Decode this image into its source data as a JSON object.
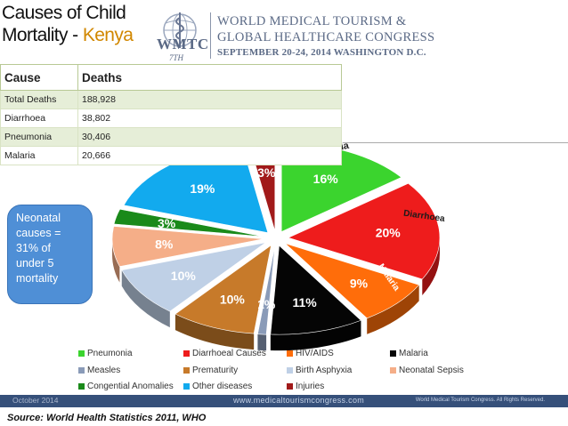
{
  "header": {
    "title_line1": "Causes of Child",
    "title_line2_prefix": "Mortality - ",
    "title_country": "Kenya"
  },
  "logo": {
    "wmtc": "WMTC",
    "edition": "7TH",
    "line1": "WORLD MEDICAL TOURISM &",
    "line2": "GLOBAL HEALTHCARE CONGRESS",
    "line3": "SEPTEMBER 20-24, 2014 WASHINGTON D.C."
  },
  "table": {
    "headers": [
      "Cause",
      "Deaths"
    ],
    "rows": [
      [
        "Total Deaths",
        "188,928"
      ],
      [
        "Diarrhoea",
        "38,802"
      ],
      [
        "Pneumonia",
        "30,406"
      ],
      [
        "Malaria",
        "20,666"
      ]
    ]
  },
  "note": {
    "lines": [
      "Neonatal",
      "causes =",
      "31% of",
      "under 5",
      "mortality"
    ]
  },
  "chart_data": {
    "type": "pie",
    "title": "",
    "slices": [
      {
        "name": "Pneumonia",
        "value": 16,
        "label": "16%",
        "color": "#3bd42e"
      },
      {
        "name": "Diarrhoeal Causes",
        "value": 20,
        "label": "20%",
        "color": "#ee1c1c"
      },
      {
        "name": "HIV/AIDS",
        "value": 9,
        "label": "9%",
        "color": "#ff6d0a"
      },
      {
        "name": "Malaria",
        "value": 11,
        "label": "11%",
        "color": "#050505"
      },
      {
        "name": "Measles",
        "value": 1,
        "label": "1%",
        "color": "#8a9bb8"
      },
      {
        "name": "Prematurity",
        "value": 10,
        "label": "10%",
        "color": "#c77a2a"
      },
      {
        "name": "Birth Asphyxia",
        "value": 10,
        "label": "10%",
        "color": "#bfd0e6"
      },
      {
        "name": "Neonatal Sepsis",
        "value": 8,
        "label": "8%",
        "color": "#f5ae88"
      },
      {
        "name": "Congential Anomalies",
        "value": 3,
        "label": "3%",
        "color": "#1a8a1a"
      },
      {
        "name": "Other diseases",
        "value": 19,
        "label": "19%",
        "color": "#12aaee"
      },
      {
        "name": "Injuries",
        "value": 3,
        "label": "3%",
        "color": "#a11a1a"
      }
    ],
    "slice_annotations": [
      "Pneumonia",
      "Diarrhoea",
      "Malaria"
    ],
    "legend_position": "bottom"
  },
  "footer": {
    "left": "October 2014",
    "center": "www.medicaltourismcongress.com",
    "right": "World Medical Tourism Congress. All Rights Reserved."
  },
  "source": "Source: World Health Statistics 2011, WHO"
}
